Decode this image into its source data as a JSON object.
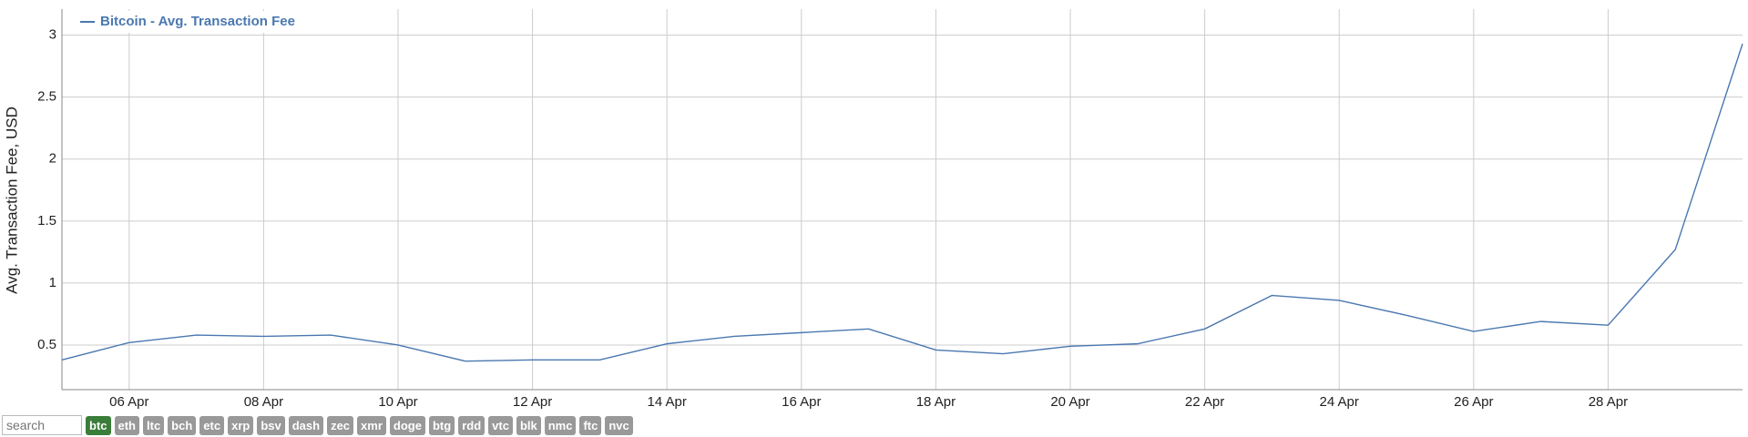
{
  "chart_data": {
    "type": "line",
    "legend_title": "Bitcoin - Avg. Transaction Fee",
    "y_label": "Avg. Transaction Fee, USD",
    "x": [
      "05 Apr",
      "06 Apr",
      "07 Apr",
      "08 Apr",
      "09 Apr",
      "10 Apr",
      "11 Apr",
      "12 Apr",
      "13 Apr",
      "14 Apr",
      "15 Apr",
      "16 Apr",
      "17 Apr",
      "18 Apr",
      "19 Apr",
      "20 Apr",
      "21 Apr",
      "22 Apr",
      "23 Apr",
      "24 Apr",
      "25 Apr",
      "26 Apr",
      "27 Apr",
      "28 Apr",
      "29 Apr",
      "30 Apr"
    ],
    "series": [
      {
        "name": "Bitcoin - Avg. Transaction Fee",
        "color": "#4a78b0",
        "values": [
          0.38,
          0.52,
          0.58,
          0.57,
          0.58,
          0.5,
          0.37,
          0.38,
          0.38,
          0.51,
          0.57,
          0.6,
          0.63,
          0.46,
          0.43,
          0.49,
          0.51,
          0.63,
          0.9,
          0.86,
          0.74,
          0.61,
          0.69,
          0.66,
          1.27,
          2.93
        ]
      }
    ],
    "xlim": [
      "05 Apr",
      "30 Apr"
    ],
    "xticks": [
      "06 Apr",
      "08 Apr",
      "10 Apr",
      "12 Apr",
      "14 Apr",
      "16 Apr",
      "18 Apr",
      "20 Apr",
      "22 Apr",
      "24 Apr",
      "26 Apr",
      "28 Apr"
    ],
    "ylim": [
      0.14,
      3.21
    ],
    "yticks": [
      0.5,
      1,
      1.5,
      2,
      2.5,
      3
    ],
    "grid": true
  },
  "toolbar": {
    "search_placeholder": "search",
    "active": "btc",
    "coins": [
      "btc",
      "eth",
      "ltc",
      "bch",
      "etc",
      "xrp",
      "bsv",
      "dash",
      "zec",
      "xmr",
      "doge",
      "btg",
      "rdd",
      "vtc",
      "blk",
      "nmc",
      "ftc",
      "nvc"
    ]
  }
}
